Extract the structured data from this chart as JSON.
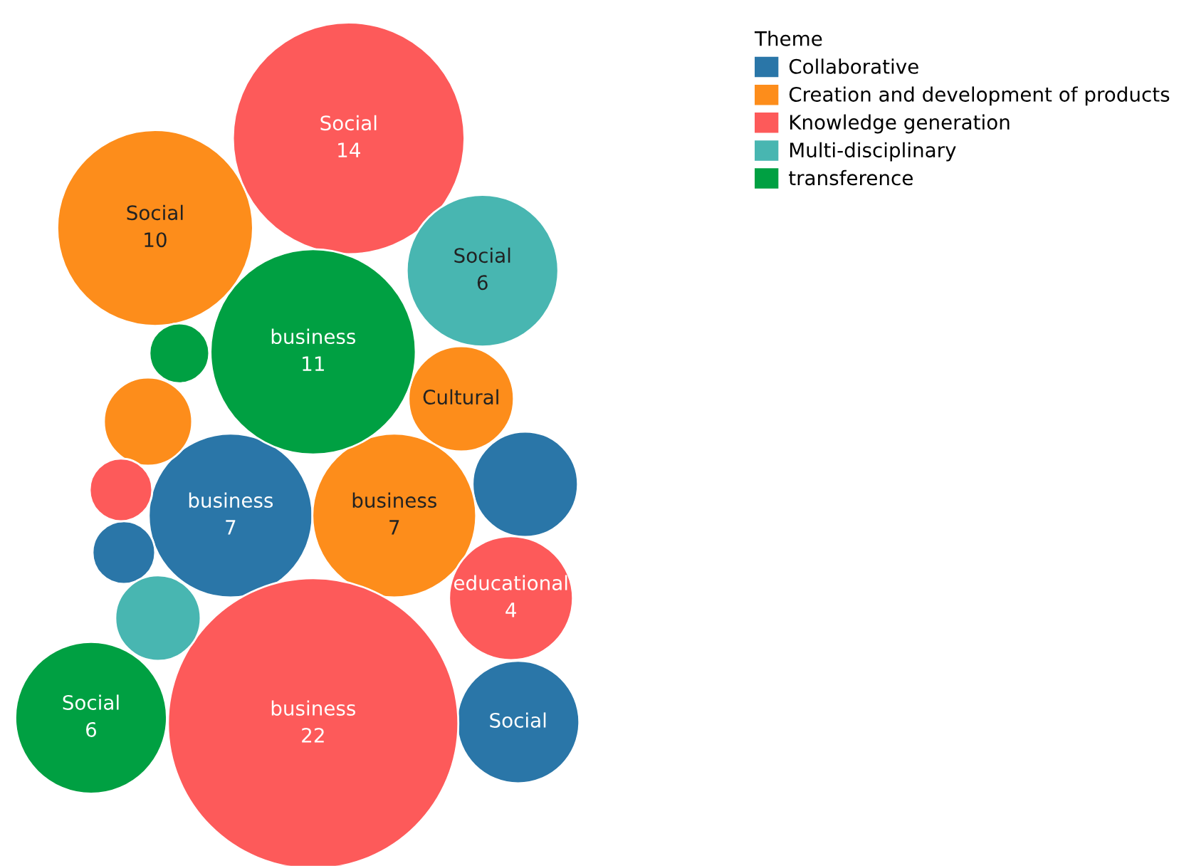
{
  "chart_data": {
    "type": "other",
    "legend_title": "Theme",
    "legend": "top right",
    "categories": [
      "business",
      null,
      null,
      "Social",
      "Social",
      "Cultural",
      null,
      "business",
      "Social",
      null,
      "educational",
      "business",
      "Social",
      null,
      "business",
      null,
      "Social"
    ],
    "colors": [
      "#2a76a8",
      "#2a76a8",
      "#2a76a8",
      "#2a76a8",
      "#fd8d1b",
      "#fd8d1b",
      "#fd8d1b",
      "#fd8d1b",
      "#fd5a5a",
      "#fd5a5a",
      "#fd5a5a",
      "#fd5a5a",
      "#48b6b1",
      "#48b6b1",
      "#00a042",
      "#00a042",
      "#00a042"
    ],
    "series": [
      {
        "name": "Collaborative",
        "color": "#2a76a8",
        "values": [
          7,
          null,
          null,
          null,
          null,
          null,
          null,
          null,
          null,
          null,
          null,
          null,
          null,
          null,
          null,
          null,
          null
        ],
        "value_labels": [
          "7",
          null,
          null,
          null,
          null,
          null,
          null,
          null,
          null,
          null,
          null,
          null,
          null,
          null,
          null,
          null,
          null
        ]
      },
      {
        "name": "Creation and development of products",
        "color": "#fd8d1b",
        "values": [
          null,
          null,
          null,
          null,
          10,
          null,
          null,
          7,
          null,
          null,
          null,
          null,
          null,
          null,
          null,
          null,
          null
        ],
        "value_labels": [
          null,
          null,
          null,
          null,
          "10",
          null,
          null,
          "7",
          null,
          null,
          null,
          null,
          null,
          null,
          null,
          null,
          null
        ]
      },
      {
        "name": "Knowledge generation",
        "color": "#fd5a5a",
        "values": [
          null,
          null,
          null,
          null,
          null,
          null,
          null,
          null,
          14,
          null,
          4,
          22,
          null,
          null,
          null,
          null,
          null
        ],
        "value_labels": [
          null,
          null,
          null,
          null,
          null,
          null,
          null,
          null,
          "14",
          null,
          "4",
          "22",
          null,
          null,
          null,
          null,
          null
        ]
      },
      {
        "name": "Multi-disciplinary",
        "color": "#48b6b1",
        "values": [
          null,
          null,
          null,
          null,
          null,
          null,
          null,
          null,
          null,
          null,
          null,
          null,
          6,
          null,
          null,
          null,
          null
        ],
        "value_labels": [
          null,
          null,
          null,
          null,
          null,
          null,
          null,
          null,
          null,
          null,
          null,
          null,
          "6",
          null,
          null,
          null,
          null
        ]
      },
      {
        "name": "transference",
        "color": "#00a042",
        "values": [
          null,
          null,
          null,
          null,
          null,
          null,
          null,
          null,
          null,
          null,
          null,
          null,
          null,
          null,
          11,
          null,
          6
        ],
        "value_labels": [
          null,
          null,
          null,
          null,
          null,
          null,
          null,
          null,
          null,
          null,
          null,
          null,
          null,
          null,
          "11",
          null,
          "6"
        ]
      }
    ]
  }
}
